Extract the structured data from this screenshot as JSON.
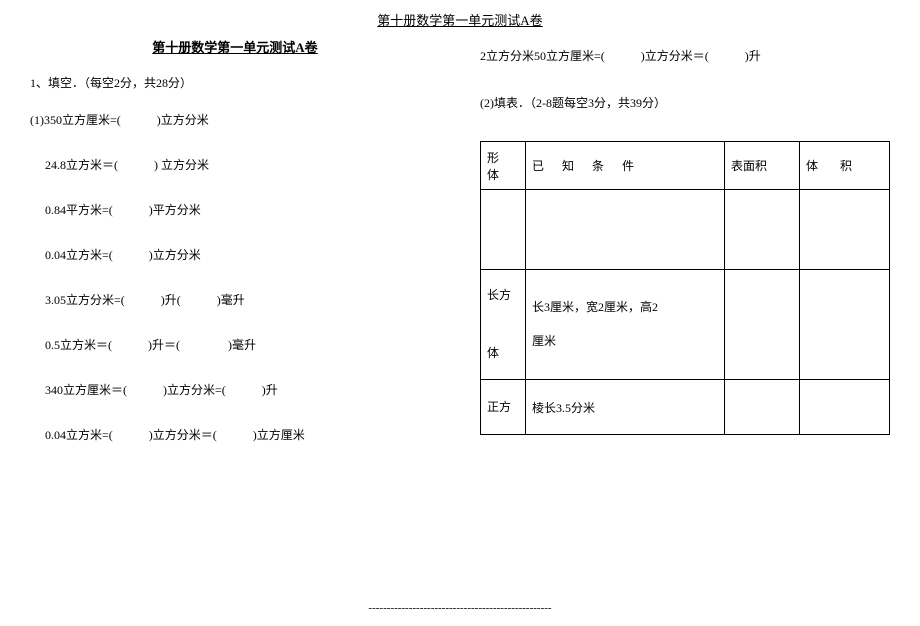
{
  "header": {
    "page_title": "第十册数学第一单元测试A卷",
    "subtitle": "第十册数学第一单元测试A卷"
  },
  "section1": {
    "title": "1、填空．（每空2分，共28分）",
    "items": [
      "(1)350立方厘米=(　　　)立方分米",
      "24.8立方米＝(　　　) 立方分米",
      "0.84平方米=(　　　)平方分米",
      "0.04立方米=(　　　)立方分米",
      "3.05立方分米=(　　　)升(　　　)毫升",
      "0.5立方米＝(　　　)升＝(　　　　)毫升",
      "340立方厘米＝(　　　)立方分米=(　　　)升",
      "0.04立方米=(　　　)立方分米＝(　　　)立方厘米"
    ]
  },
  "section2": {
    "line1": "2立方分米50立方厘米=(　　　)立方分米＝(　　　)升",
    "title": "(2)填表．（2-8题每空3分，共39分）",
    "table": {
      "headers": {
        "shape": "形体",
        "condition": "已知条件",
        "surface": "表面积",
        "volume": "体积"
      },
      "rows": [
        {
          "shape": "",
          "condition": "",
          "surface": "",
          "volume": ""
        },
        {
          "shape_line1": "长方",
          "shape_line2": "体",
          "condition_line1": "长3厘米，宽2厘米，高2",
          "condition_line2": "厘米",
          "surface": "",
          "volume": ""
        },
        {
          "shape": "正方",
          "condition": "棱长3.5分米",
          "surface": "",
          "volume": ""
        }
      ]
    }
  },
  "footer": {
    "dashes": "--------------------------------------------------"
  }
}
